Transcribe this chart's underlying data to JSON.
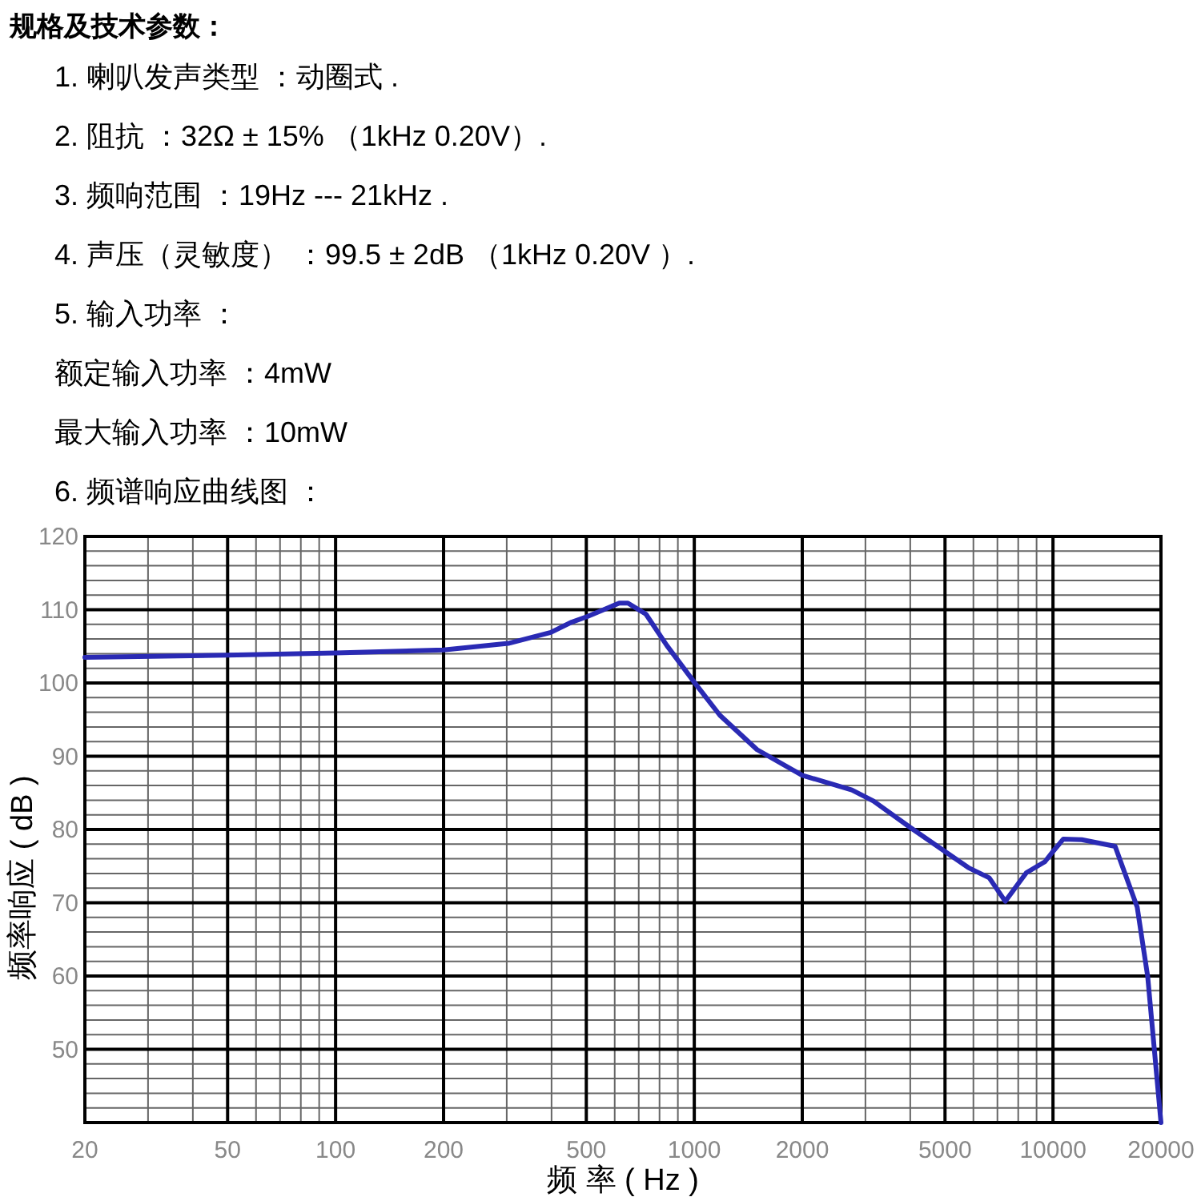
{
  "chart_data": {
    "type": "line",
    "title": "规格及技术参数：",
    "annotations": [
      "1. 喇叭发声类型 ：动圈式 .",
      "2. 阻抗 ：32Ω ± 15% （1kHz 0.20V）.",
      "3. 频响范围 ：19Hz --- 21kHz .",
      "4. 声压（灵敏度） ：99.5 ± 2dB （1kHz 0.20V ）.",
      "5. 输入功率 ：",
      "额定输入功率 ：4mW",
      "最大输入功率 ：10mW",
      "6. 频谱响应曲线图 ："
    ],
    "xlabel": "频 率 ( Hz )",
    "ylabel": "频率响应 ( dB )",
    "log": "x",
    "grid": true,
    "xlim": [
      20,
      20000
    ],
    "ylim": [
      40,
      120
    ],
    "xticks": [
      20,
      50,
      100,
      200,
      500,
      1000,
      2000,
      5000,
      10000,
      20000
    ],
    "yticks": [
      50,
      60,
      70,
      80,
      90,
      100,
      110,
      120
    ],
    "series": [
      {
        "color": "#2a2ab4",
        "x": [
          20,
          50,
          100,
          200,
          303,
          398,
          455,
          505,
          618,
          653,
          733,
          839,
          1000,
          1178,
          1496,
          2000,
          2749,
          3156,
          3993,
          5000,
          5805,
          6642,
          7359,
          8429,
          9494,
          10000,
          10690,
          12030,
          14900,
          17170,
          18370,
          20000
        ],
        "values": [
          103.5,
          103.8,
          104.1,
          104.5,
          105.4,
          106.9,
          108.3,
          109.1,
          110.9,
          110.9,
          109.4,
          105.1,
          100.1,
          95.6,
          90.9,
          87.4,
          85.4,
          83.9,
          80.3,
          77.0,
          74.8,
          73.4,
          70.2,
          74.1,
          75.6,
          77.0,
          78.7,
          78.6,
          77.7,
          69.4,
          59.9,
          40
        ]
      }
    ]
  }
}
